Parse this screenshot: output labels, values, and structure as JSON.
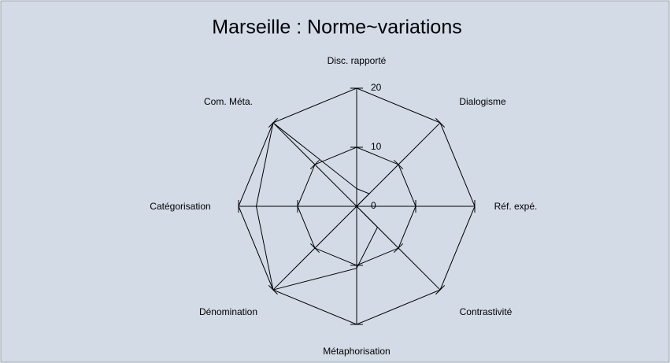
{
  "chart_data": {
    "type": "radar",
    "title": "Marseille : Norme~variations",
    "categories": [
      "Disc. rapporté",
      "Dialogisme",
      "Réf. expé.",
      "Contrastivité",
      "Métaphorisation",
      "Dénomination",
      "Catégorisation",
      "Com. Méta."
    ],
    "values": [
      3,
      3,
      0,
      5,
      10.5,
      20,
      17,
      20
    ],
    "color": "#000000",
    "ylim": [
      0,
      20
    ],
    "yticks": [
      0,
      10,
      20
    ],
    "grid": true
  }
}
